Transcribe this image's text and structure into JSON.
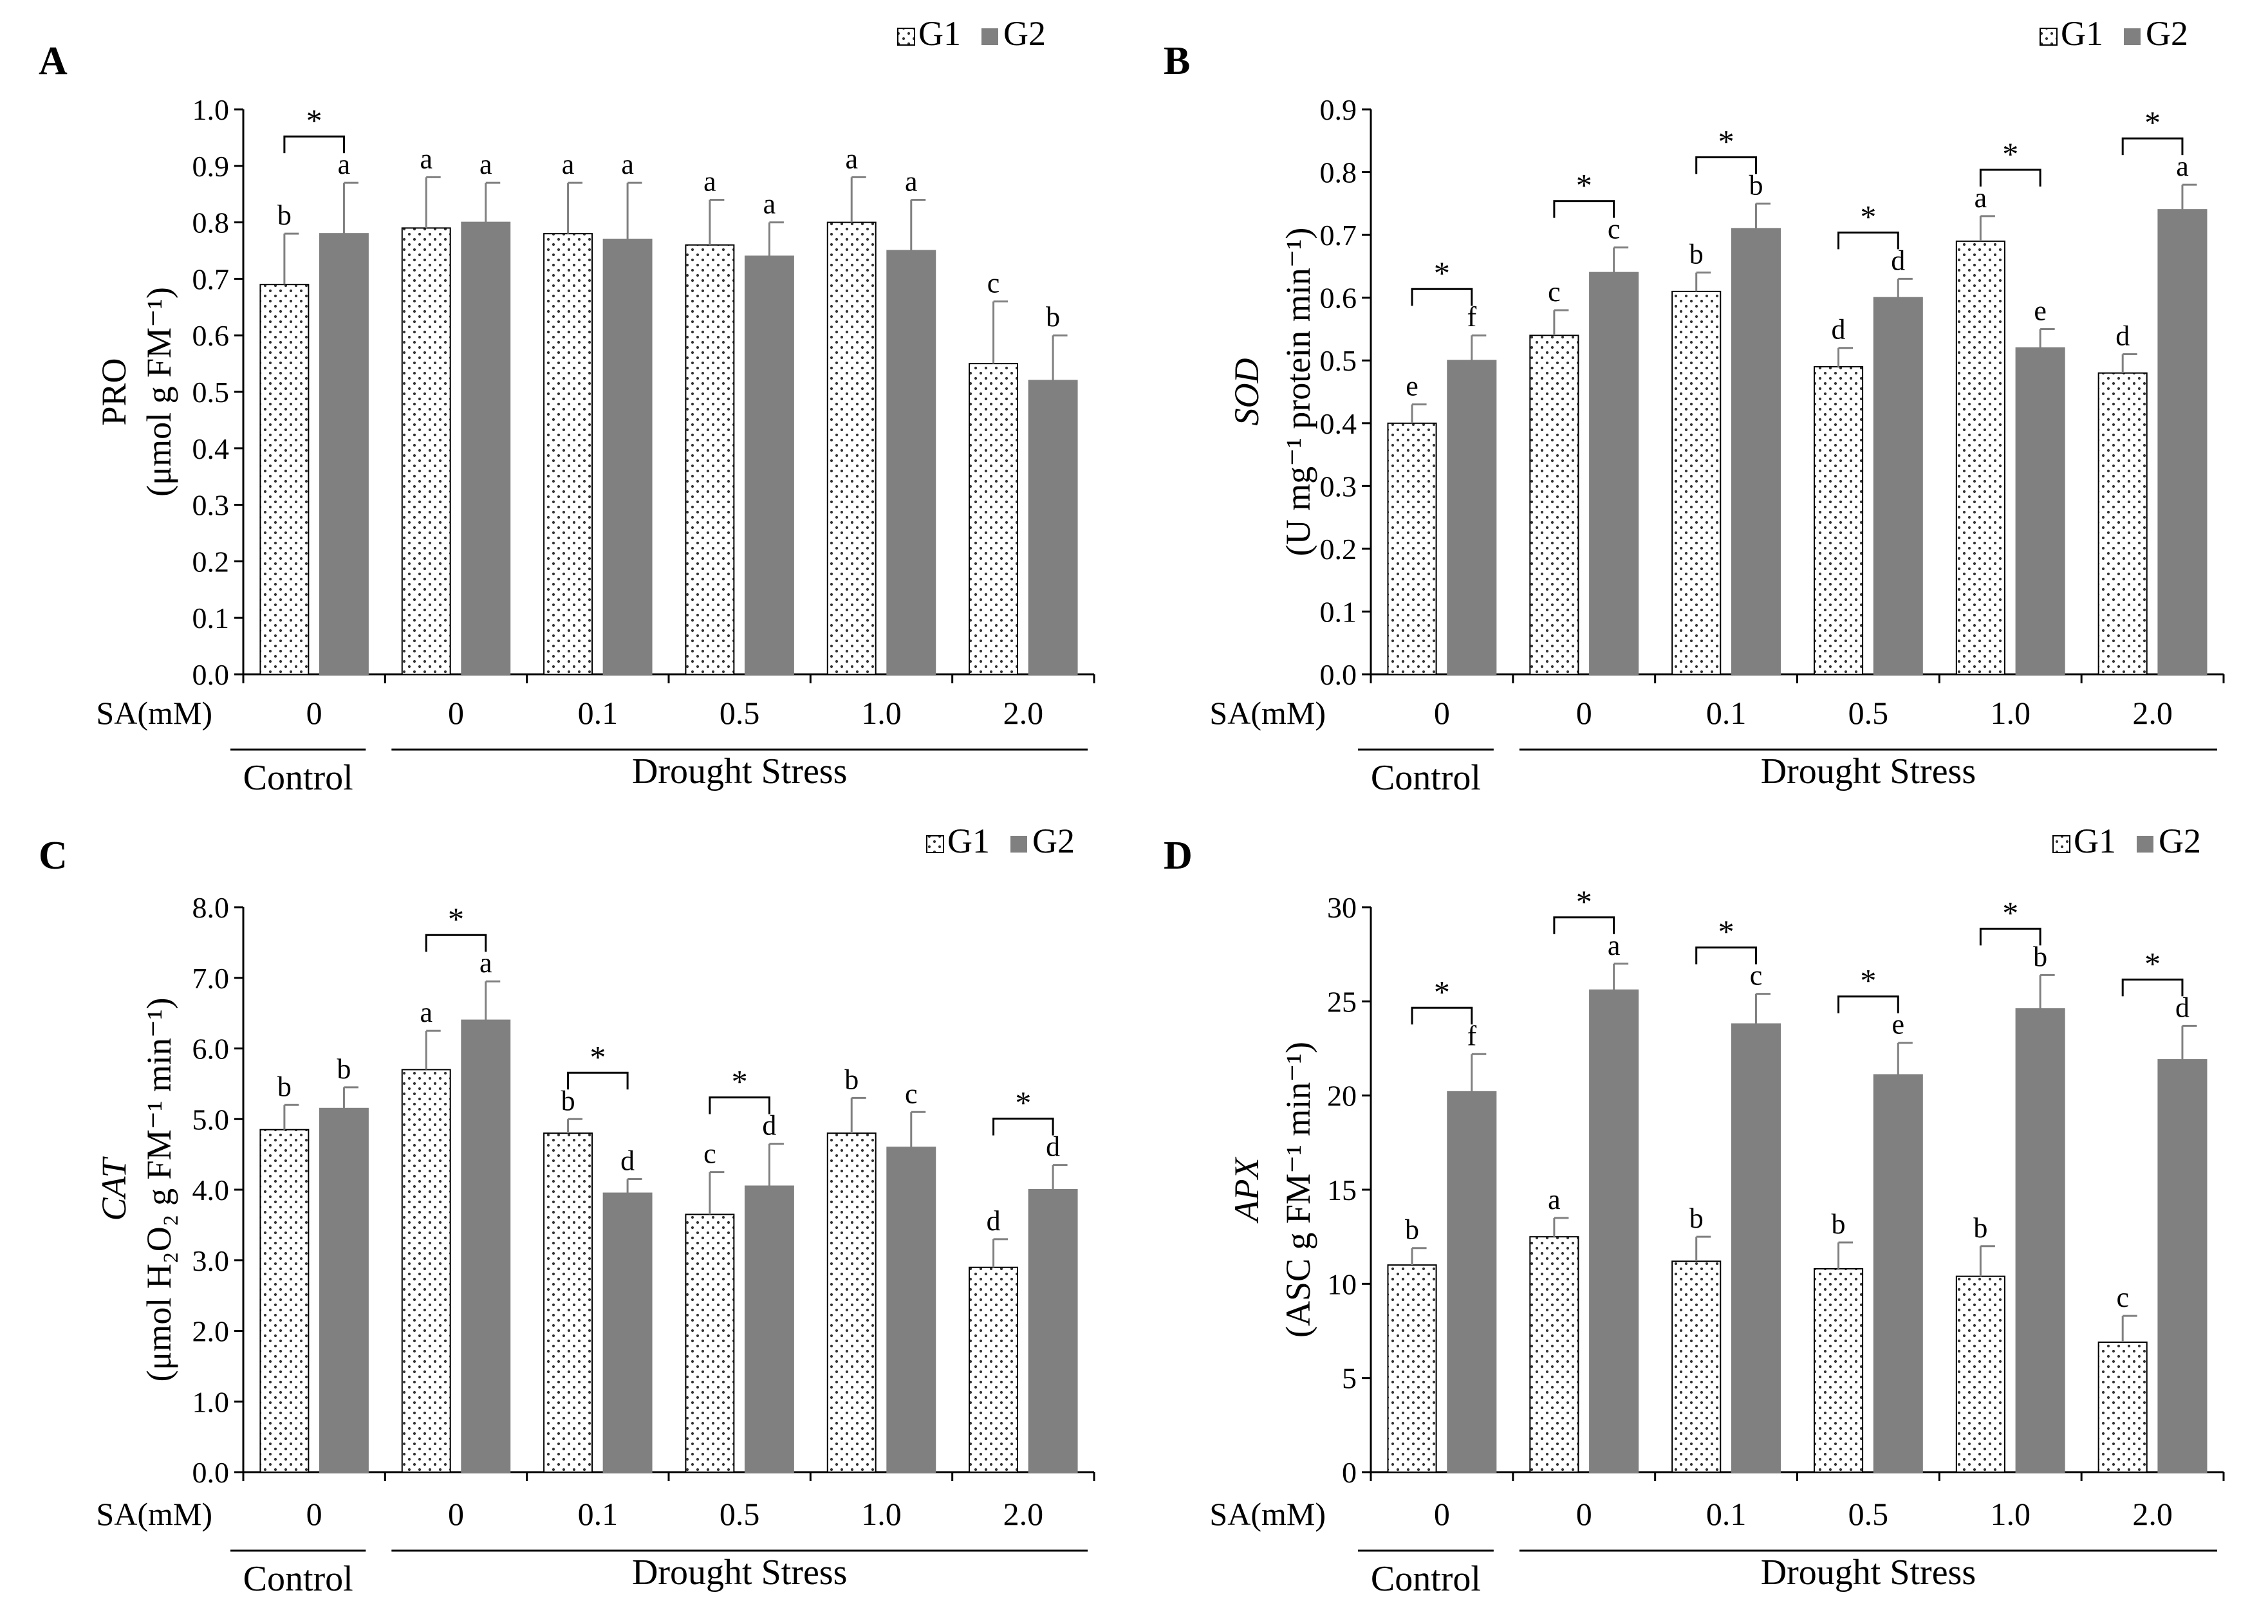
{
  "legend": [
    "G1",
    "G2"
  ],
  "colors": {
    "g1_fill": "#ffffff",
    "g1_dots": "#333333",
    "g2_fill": "#808080",
    "axis": "#000000"
  },
  "x_prefix": "SA(mM)",
  "groups": {
    "control": "Control",
    "drought": "Drought Stress"
  },
  "significance_marker": "*",
  "chart_data": [
    {
      "panel": "A",
      "type": "bar",
      "ylabel_line1": "PRO",
      "ylabel_line2": "(μmol  g FM⁻¹)",
      "ylim": [
        0,
        1.0
      ],
      "yticks": [
        "0.0",
        "0.1",
        "0.2",
        "0.3",
        "0.4",
        "0.5",
        "0.6",
        "0.7",
        "0.8",
        "0.9",
        "1.0"
      ],
      "categories": [
        "0",
        "0",
        "0.1",
        "0.5",
        "1.0",
        "2.0"
      ],
      "series": [
        {
          "name": "G1",
          "values": [
            0.69,
            0.79,
            0.78,
            0.76,
            0.8,
            0.55
          ],
          "errors": [
            0.09,
            0.09,
            0.09,
            0.08,
            0.08,
            0.11
          ],
          "letters": [
            "b",
            "a",
            "a",
            "a",
            "a",
            "c"
          ]
        },
        {
          "name": "G2",
          "values": [
            0.78,
            0.8,
            0.77,
            0.74,
            0.75,
            0.52
          ],
          "errors": [
            0.09,
            0.07,
            0.1,
            0.06,
            0.09,
            0.08
          ],
          "letters": [
            "a",
            "a",
            "a",
            "a",
            "a",
            "b"
          ]
        }
      ],
      "significant": [
        true,
        false,
        false,
        false,
        false,
        false
      ]
    },
    {
      "panel": "B",
      "type": "bar",
      "ylabel_line1": "SOD",
      "ylabel_line2": "(U  mg⁻¹ protein min⁻¹)",
      "ylim": [
        0,
        0.9
      ],
      "yticks": [
        "0.0",
        "0.1",
        "0.2",
        "0.3",
        "0.4",
        "0.5",
        "0.6",
        "0.7",
        "0.8",
        "0.9"
      ],
      "categories": [
        "0",
        "0",
        "0.1",
        "0.5",
        "1.0",
        "2.0"
      ],
      "series": [
        {
          "name": "G1",
          "values": [
            0.4,
            0.54,
            0.61,
            0.49,
            0.69,
            0.48
          ],
          "errors": [
            0.03,
            0.04,
            0.03,
            0.03,
            0.04,
            0.03
          ],
          "letters": [
            "e",
            "c",
            "b",
            "d",
            "a",
            "d"
          ]
        },
        {
          "name": "G2",
          "values": [
            0.5,
            0.64,
            0.71,
            0.6,
            0.52,
            0.74
          ],
          "errors": [
            0.04,
            0.04,
            0.04,
            0.03,
            0.03,
            0.04
          ],
          "letters": [
            "f",
            "c",
            "b",
            "d",
            "e",
            "a"
          ]
        }
      ],
      "significant": [
        true,
        true,
        true,
        true,
        true,
        true
      ]
    },
    {
      "panel": "C",
      "type": "bar",
      "ylabel_line1": "CAT",
      "ylabel_line2": "(μmol H₂O₂ g FM⁻¹ min⁻¹)",
      "ylim": [
        0,
        8.0
      ],
      "yticks": [
        "0.0",
        "1.0",
        "2.0",
        "3.0",
        "4.0",
        "5.0",
        "6.0",
        "7.0",
        "8.0"
      ],
      "categories": [
        "0",
        "0",
        "0.1",
        "0.5",
        "1.0",
        "2.0"
      ],
      "series": [
        {
          "name": "G1",
          "values": [
            4.85,
            5.7,
            4.8,
            3.65,
            4.8,
            2.9
          ],
          "errors": [
            0.35,
            0.55,
            0.2,
            0.6,
            0.5,
            0.4
          ],
          "letters": [
            "b",
            "a",
            "b",
            "c",
            "b",
            "d"
          ]
        },
        {
          "name": "G2",
          "values": [
            5.15,
            6.4,
            3.95,
            4.05,
            4.6,
            4.0
          ],
          "errors": [
            0.3,
            0.55,
            0.2,
            0.6,
            0.5,
            0.35
          ],
          "letters": [
            "b",
            "a",
            "d",
            "d",
            "c",
            "d"
          ]
        }
      ],
      "significant": [
        false,
        true,
        true,
        true,
        false,
        true
      ]
    },
    {
      "panel": "D",
      "type": "bar",
      "ylabel_line1": "APX",
      "ylabel_line2": "(ASC g FM⁻¹ min⁻¹)",
      "ylim": [
        0,
        30
      ],
      "yticks": [
        "0",
        "5",
        "10",
        "15",
        "20",
        "25",
        "30"
      ],
      "categories": [
        "0",
        "0",
        "0.1",
        "0.5",
        "1.0",
        "2.0"
      ],
      "series": [
        {
          "name": "G1",
          "values": [
            11.0,
            12.5,
            11.2,
            10.8,
            10.4,
            6.9
          ],
          "errors": [
            0.9,
            1.0,
            1.3,
            1.4,
            1.6,
            1.4
          ],
          "letters": [
            "b",
            "a",
            "b",
            "b",
            "b",
            "c"
          ]
        },
        {
          "name": "G2",
          "values": [
            20.2,
            25.6,
            23.8,
            21.1,
            24.6,
            21.9
          ],
          "errors": [
            2.0,
            1.4,
            1.6,
            1.7,
            1.8,
            1.8
          ],
          "letters": [
            "f",
            "a",
            "c",
            "e",
            "b",
            "d"
          ]
        }
      ],
      "significant": [
        true,
        true,
        true,
        true,
        true,
        true
      ]
    }
  ]
}
